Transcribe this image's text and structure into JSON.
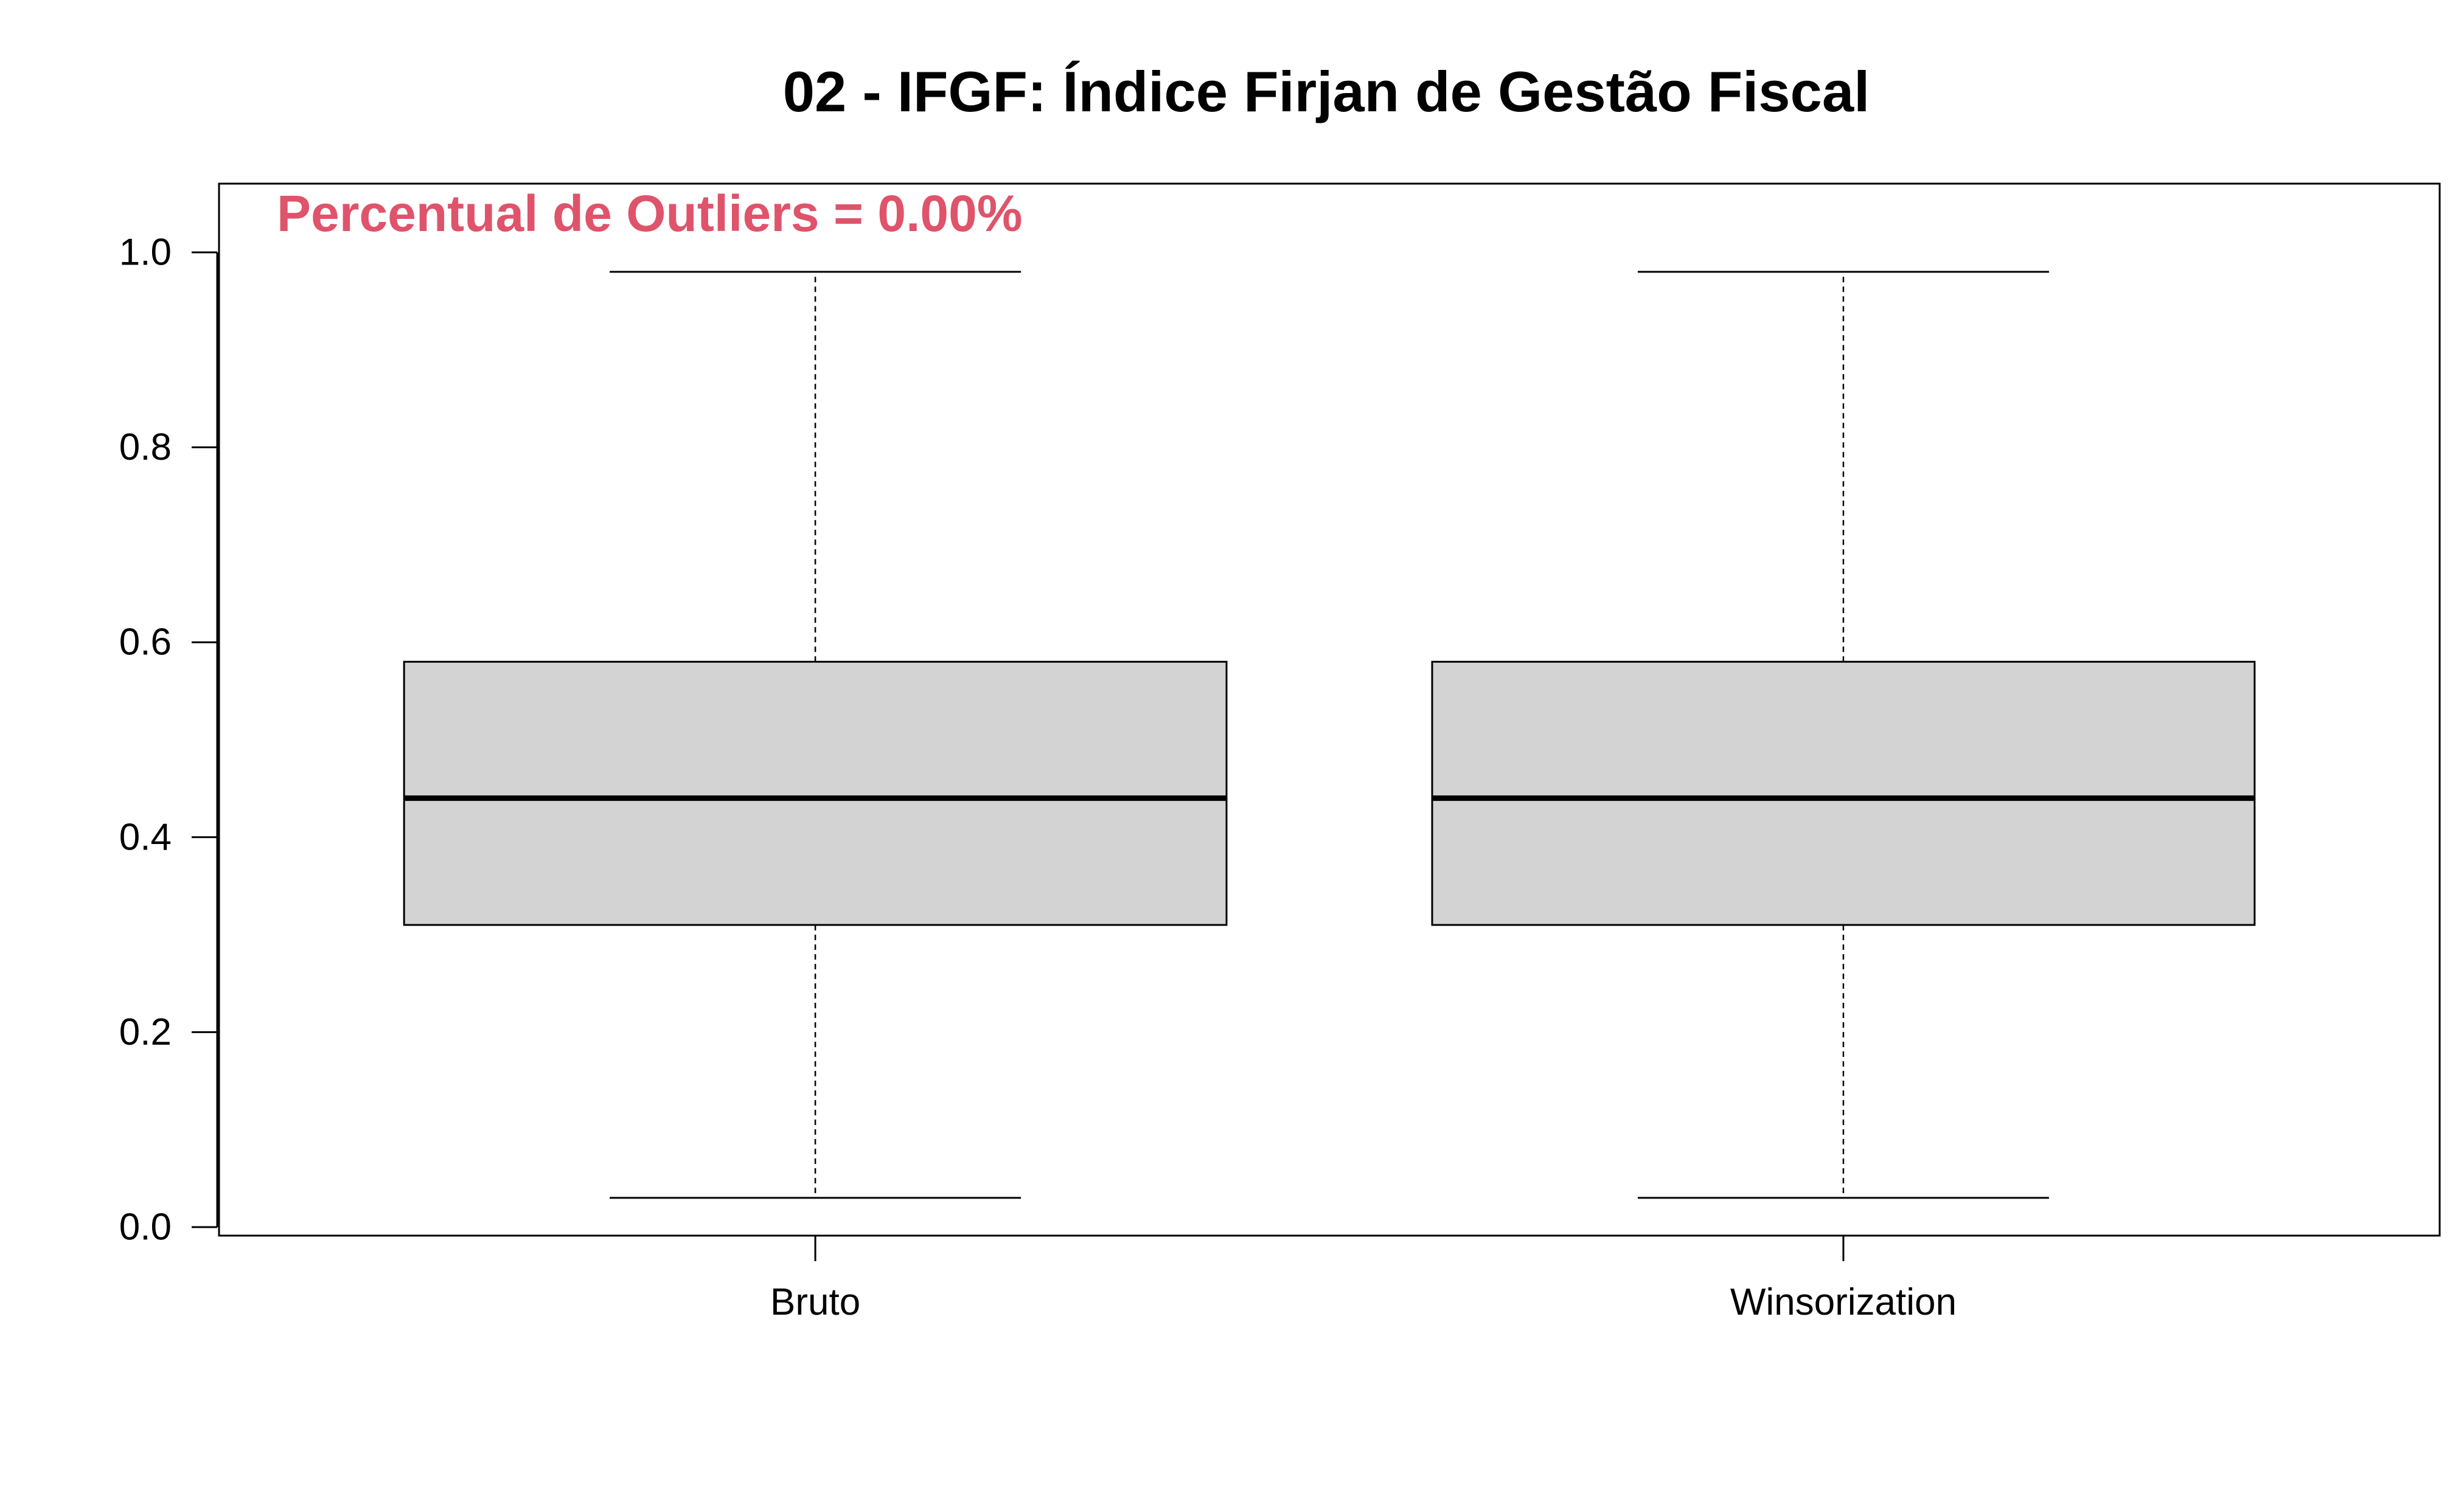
{
  "chart_data": {
    "type": "boxplot",
    "title": "02 - IFGF: Índice Firjan de Gestão Fiscal",
    "xlabel": "",
    "ylabel": "",
    "ylim": [
      0.0,
      1.06
    ],
    "yticks": [
      0.0,
      0.2,
      0.4,
      0.6,
      0.8,
      1.0
    ],
    "ytick_labels": [
      "0.0",
      "0.2",
      "0.4",
      "0.6",
      "0.8",
      "1.0"
    ],
    "grid": false,
    "legend": "none",
    "categories": [
      "Bruto",
      "Winsorization"
    ],
    "boxes": [
      {
        "whisker_low": 0.03,
        "q1": 0.31,
        "median": 0.44,
        "q3": 0.58,
        "whisker_high": 0.98
      },
      {
        "whisker_low": 0.03,
        "q1": 0.31,
        "median": 0.44,
        "q3": 0.58,
        "whisker_high": 0.98
      }
    ],
    "annotation": "Percentual de Outliers = 0.00%",
    "annotation_placement": "top-left",
    "colors": {
      "box_fill": "#d3d3d3",
      "line": "#000000",
      "annotation": "#df536b"
    }
  }
}
